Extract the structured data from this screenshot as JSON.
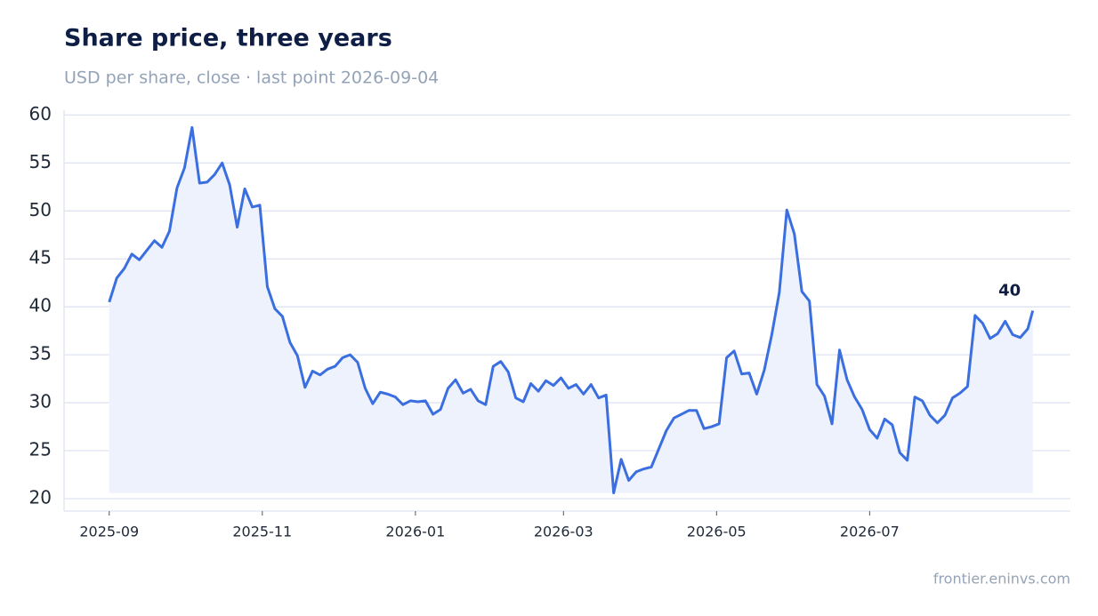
{
  "chart_data": {
    "type": "line",
    "title": "Share price, three years",
    "subtitle": "USD per share, close · last point 2026-09-04",
    "source": "frontier.eninvs.com",
    "x": [
      "2025-09-01",
      "2025-09-04",
      "2025-09-07",
      "2025-09-10",
      "2025-09-13",
      "2025-09-16",
      "2025-09-19",
      "2025-09-22",
      "2025-09-25",
      "2025-09-28",
      "2025-10-01",
      "2025-10-04",
      "2025-10-07",
      "2025-10-10",
      "2025-10-13",
      "2025-10-16",
      "2025-10-19",
      "2025-10-22",
      "2025-10-25",
      "2025-10-28",
      "2025-10-31",
      "2025-11-03",
      "2025-11-06",
      "2025-11-09",
      "2025-11-12",
      "2025-11-15",
      "2025-11-18",
      "2025-11-21",
      "2025-11-24",
      "2025-11-27",
      "2025-11-30",
      "2025-12-03",
      "2025-12-06",
      "2025-12-09",
      "2025-12-12",
      "2025-12-15",
      "2025-12-18",
      "2025-12-21",
      "2025-12-24",
      "2025-12-27",
      "2025-12-30",
      "2026-01-02",
      "2026-01-05",
      "2026-01-08",
      "2026-01-11",
      "2026-01-14",
      "2026-01-17",
      "2026-01-20",
      "2026-01-23",
      "2026-01-26",
      "2026-01-29",
      "2026-02-01",
      "2026-02-04",
      "2026-02-07",
      "2026-02-10",
      "2026-02-13",
      "2026-02-16",
      "2026-02-19",
      "2026-02-22",
      "2026-02-25",
      "2026-02-28",
      "2026-03-03",
      "2026-03-06",
      "2026-03-09",
      "2026-03-12",
      "2026-03-15",
      "2026-03-18",
      "2026-03-21",
      "2026-03-24",
      "2026-03-27",
      "2026-03-30",
      "2026-04-02",
      "2026-04-05",
      "2026-04-08",
      "2026-04-11",
      "2026-04-14",
      "2026-04-17",
      "2026-04-20",
      "2026-04-23",
      "2026-04-26",
      "2026-04-29",
      "2026-05-02",
      "2026-05-05",
      "2026-05-08",
      "2026-05-11",
      "2026-05-14",
      "2026-05-17",
      "2026-05-20",
      "2026-05-23",
      "2026-05-26",
      "2026-05-29",
      "2026-06-01",
      "2026-06-04",
      "2026-06-07",
      "2026-06-10",
      "2026-06-13",
      "2026-06-16",
      "2026-06-19",
      "2026-06-22",
      "2026-06-25",
      "2026-06-28",
      "2026-07-01",
      "2026-07-04",
      "2026-07-07",
      "2026-07-10",
      "2026-07-13",
      "2026-07-16",
      "2026-07-19",
      "2026-07-22",
      "2026-07-25",
      "2026-07-28",
      "2026-07-31",
      "2026-08-03",
      "2026-08-06",
      "2026-08-09",
      "2026-08-12",
      "2026-08-15",
      "2026-08-18",
      "2026-08-21",
      "2026-08-24",
      "2026-08-27",
      "2026-08-30",
      "2026-09-02",
      "2026-09-04"
    ],
    "series": [
      {
        "name": "Close",
        "color": "#3b6fe0",
        "fill": "#edf2fd",
        "values": [
          40.5,
          43,
          44,
          45.5,
          44.9,
          45.9,
          46.9,
          46.2,
          47.9,
          52.4,
          54.5,
          58.7,
          52.9,
          53,
          53.8,
          55,
          52.7,
          48.3,
          52.3,
          50.4,
          50.6,
          42.1,
          39.8,
          39,
          36.3,
          34.9,
          31.6,
          33.3,
          32.9,
          33.5,
          33.8,
          34.7,
          35,
          34.2,
          31.5,
          29.9,
          31.1,
          30.9,
          30.6,
          29.8,
          30.2,
          30.1,
          30.2,
          28.8,
          29.3,
          31.5,
          32.4,
          31,
          31.4,
          30.2,
          29.8,
          33.8,
          34.3,
          33.2,
          30.5,
          30.1,
          32,
          31.2,
          32.3,
          31.8,
          32.6,
          31.5,
          31.9,
          30.9,
          31.9,
          30.5,
          30.8,
          20.6,
          24.1,
          21.9,
          22.8,
          23.1,
          23.3,
          25.2,
          27.1,
          28.4,
          28.8,
          29.2,
          29.2,
          27.3,
          27.5,
          27.8,
          34.7,
          35.4,
          33,
          33.1,
          30.9,
          33.4,
          37.1,
          41.5,
          50.1,
          47.6,
          41.6,
          40.6,
          31.9,
          30.7,
          27.8,
          35.5,
          32.4,
          30.6,
          29.3,
          27.2,
          26.3,
          28.3,
          27.7,
          24.8,
          24,
          30.6,
          30.2,
          28.7,
          27.9,
          28.7,
          30.5,
          31,
          31.7,
          39.1,
          38.3,
          36.7,
          37.2,
          38.5,
          37.1,
          36.8,
          37.7,
          39.6
        ],
        "value_labels": [
          null,
          null,
          null,
          null,
          null,
          null,
          null,
          null,
          null,
          null,
          null,
          null,
          null,
          null,
          null,
          null,
          null,
          null,
          null,
          null,
          null,
          null,
          null,
          null,
          null,
          null,
          null,
          null,
          null,
          null,
          null,
          null,
          null,
          null,
          null,
          null,
          null,
          null,
          null,
          null,
          null,
          null,
          null,
          null,
          null,
          null,
          null,
          null,
          null,
          null,
          null,
          null,
          null,
          null,
          null,
          null,
          null,
          null,
          null,
          null,
          null,
          null,
          null,
          null,
          null,
          null,
          null,
          null,
          null,
          null,
          null,
          null,
          null,
          null,
          null,
          null,
          null,
          null,
          null,
          null,
          null,
          null,
          null,
          null,
          null,
          null,
          null,
          null,
          null,
          null,
          null,
          null,
          null,
          null,
          null,
          null,
          null,
          null,
          null,
          null,
          null,
          null,
          null,
          null,
          null,
          null,
          null,
          null,
          null,
          null,
          null,
          null,
          null,
          null,
          null,
          null,
          null,
          null,
          null,
          null,
          null,
          null,
          null,
          "40"
        ]
      }
    ],
    "xlim": [
      "2025-08-14",
      "2026-09-19"
    ],
    "xticks": [
      {
        "value": "2025-09-01",
        "label": "2025-09"
      },
      {
        "value": "2025-11-01",
        "label": "2025-11"
      },
      {
        "value": "2026-01-01",
        "label": "2026-01"
      },
      {
        "value": "2026-03-01",
        "label": "2026-03"
      },
      {
        "value": "2026-05-01",
        "label": "2026-05"
      },
      {
        "value": "2026-07-01",
        "label": "2026-07"
      }
    ],
    "ylim": [
      18.7,
      60.5
    ],
    "yticks": [
      20,
      25,
      30,
      35,
      40,
      45,
      50,
      55,
      60
    ],
    "grid": true
  }
}
